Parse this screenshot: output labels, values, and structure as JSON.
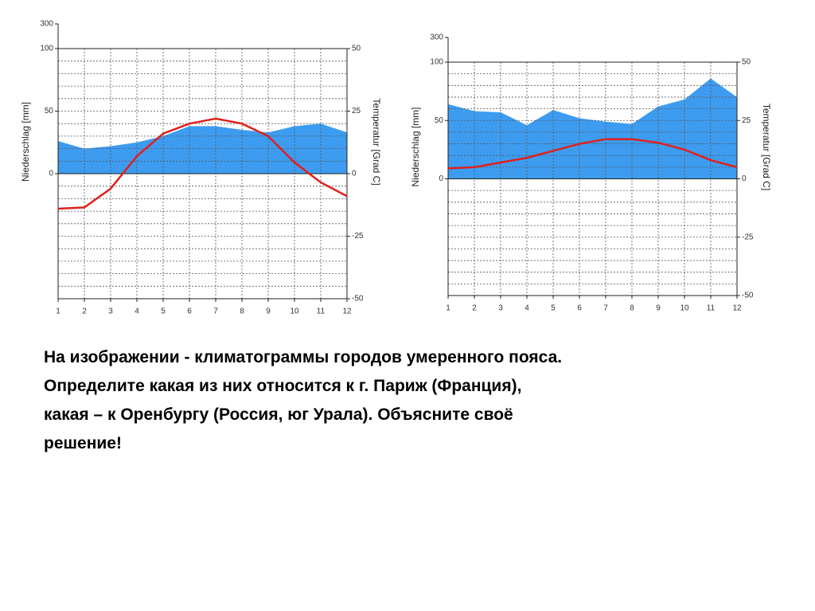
{
  "chart_data": [
    {
      "type": "climate",
      "ylabel": "Niederschlag [mm]",
      "y2label": "Temperatur [Grad C]",
      "x": [
        1,
        2,
        3,
        4,
        5,
        6,
        7,
        8,
        9,
        10,
        11,
        12
      ],
      "series": [
        {
          "kind": "area",
          "color": "#3d9cf0",
          "values": [
            26,
            20,
            22,
            25,
            30,
            38,
            38,
            35,
            33,
            38,
            40,
            33
          ]
        },
        {
          "kind": "line",
          "axis": "y2",
          "color": "#e0201c",
          "values": [
            -14,
            -13.5,
            -6,
            7,
            16,
            20,
            22,
            20,
            15,
            4.5,
            -3.5,
            -9
          ]
        }
      ],
      "xlim": [
        1,
        12
      ],
      "ylim": [
        -100,
        100
      ],
      "yticks": [
        0,
        50,
        100
      ],
      "ylim_upper": [
        100,
        300
      ],
      "yticks_upper": [
        300
      ],
      "ygrid": [
        -100,
        -90,
        -80,
        -70,
        -60,
        -50,
        -40,
        -30,
        -20,
        -10,
        0,
        10,
        20,
        30,
        40,
        50,
        60,
        70,
        80,
        90,
        100
      ],
      "y2lim": [
        -50,
        50
      ],
      "y2ticks": [
        -50,
        -25,
        0,
        25,
        50
      ],
      "grid": true
    },
    {
      "type": "climate",
      "ylabel": "Niederschlag [mm]",
      "y2label": "Temperatur [Grad C]",
      "x": [
        1,
        2,
        3,
        4,
        5,
        6,
        7,
        8,
        9,
        10,
        11,
        12
      ],
      "series": [
        {
          "kind": "area",
          "color": "#3d9cf0",
          "values": [
            64,
            58,
            57,
            46,
            59,
            52,
            49,
            47,
            62,
            68,
            86,
            70
          ]
        },
        {
          "kind": "line",
          "axis": "y2",
          "color": "#e0201c",
          "values": [
            4.5,
            5,
            7,
            9,
            12,
            15,
            17,
            17,
            15.5,
            12.5,
            8,
            5
          ]
        }
      ],
      "xlim": [
        1,
        12
      ],
      "ylim": [
        -100,
        100
      ],
      "yticks": [
        0,
        50,
        100
      ],
      "ylim_upper": [
        100,
        300
      ],
      "yticks_upper": [
        300
      ],
      "ygrid": [
        -100,
        -90,
        -80,
        -70,
        -60,
        -50,
        -40,
        -30,
        -20,
        -10,
        0,
        10,
        20,
        30,
        40,
        50,
        60,
        70,
        80,
        90,
        100
      ],
      "y2lim": [
        -50,
        50
      ],
      "y2ticks": [
        -50,
        -25,
        0,
        25,
        50
      ],
      "grid": true
    }
  ],
  "caption": [
    "На изображении -  климатограммы городов умеренного пояса.",
    "Определите какая из них относится к г. Париж (Франция),",
    "какая – к Оренбургу (Россия, юг Урала). Объясните своё",
    "решение!"
  ]
}
